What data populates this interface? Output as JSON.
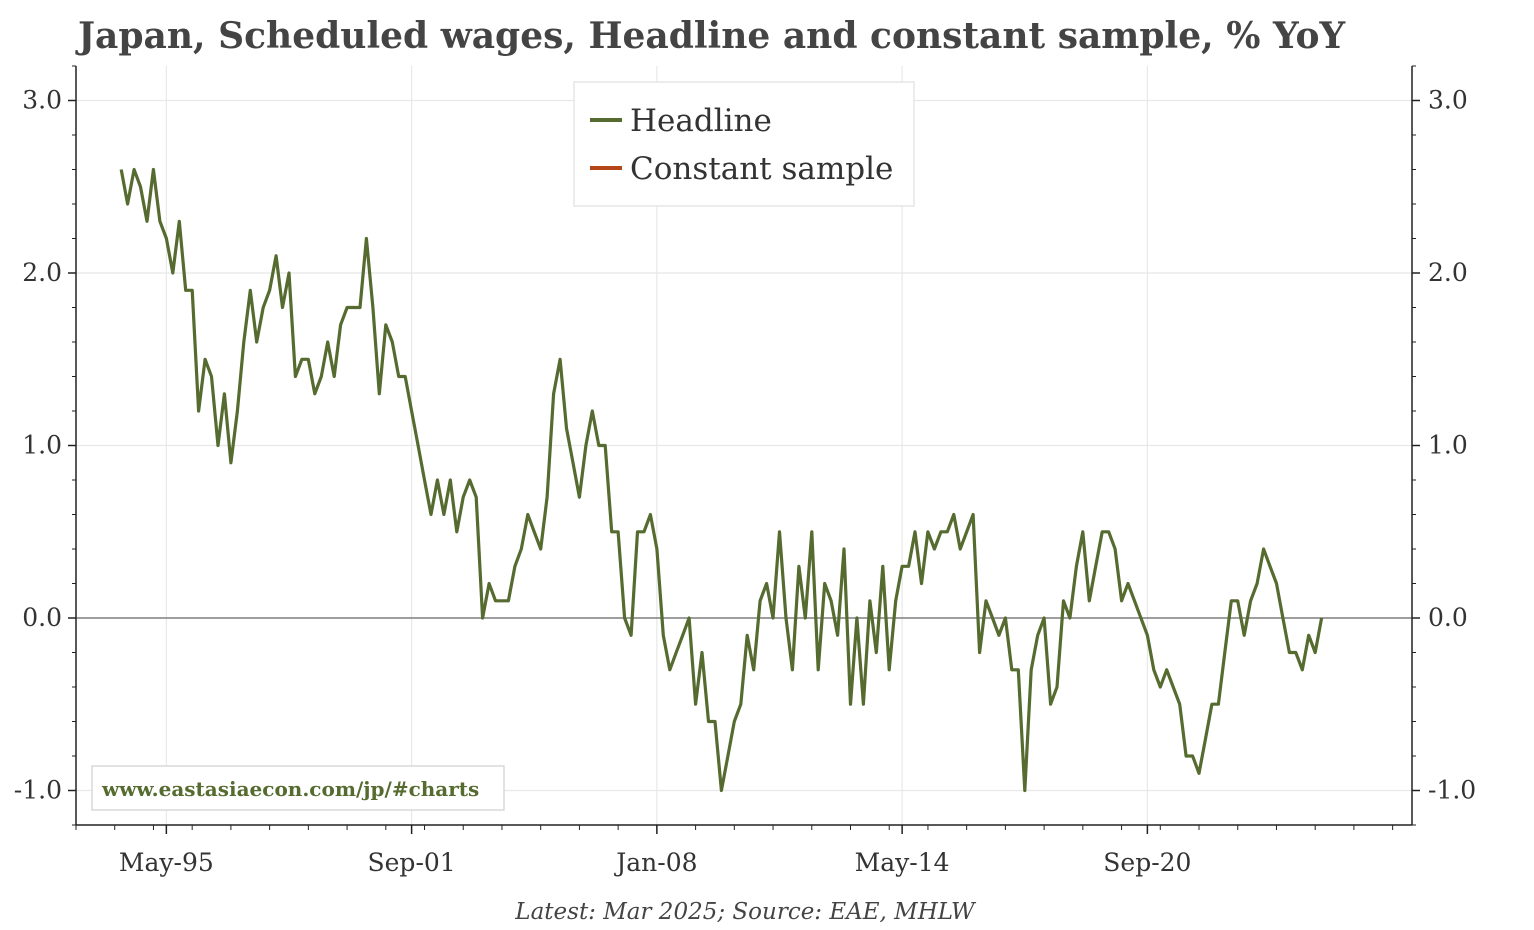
{
  "chart_data": {
    "type": "line",
    "title": "Japan, Scheduled wages, Headline and constant sample, % YoY",
    "x_start": "1994-03",
    "x_end": "2025-03",
    "x_tick_labels": [
      "May-95",
      "Sep-01",
      "Jan-08",
      "May-14",
      "Sep-20"
    ],
    "x_tick_dates": [
      "1995-05",
      "2001-09",
      "2008-01",
      "2014-05",
      "2020-09"
    ],
    "y_tick_labels": [
      "-1.0",
      "0.0",
      "1.0",
      "2.0",
      "3.0"
    ],
    "ylim": [
      -1.2,
      3.2
    ],
    "grid": true,
    "legend_position": "top-center",
    "series": [
      {
        "name": "Headline",
        "color": "#556b2f",
        "points": [
          [
            "1994-03",
            2.6
          ],
          [
            "1994-05",
            2.4
          ],
          [
            "1994-07",
            2.6
          ],
          [
            "1994-09",
            2.5
          ],
          [
            "1994-11",
            2.3
          ],
          [
            "1995-01",
            2.6
          ],
          [
            "1995-03",
            2.3
          ],
          [
            "1995-05",
            2.2
          ],
          [
            "1995-07",
            2.0
          ],
          [
            "1995-09",
            2.3
          ],
          [
            "1995-11",
            1.9
          ],
          [
            "1996-01",
            1.9
          ],
          [
            "1996-03",
            1.2
          ],
          [
            "1996-05",
            1.5
          ],
          [
            "1996-07",
            1.4
          ],
          [
            "1996-09",
            1.0
          ],
          [
            "1996-11",
            1.3
          ],
          [
            "1997-01",
            0.9
          ],
          [
            "1997-03",
            1.2
          ],
          [
            "1997-05",
            1.6
          ],
          [
            "1997-07",
            1.9
          ],
          [
            "1997-09",
            1.6
          ],
          [
            "1997-11",
            1.8
          ],
          [
            "1998-01",
            1.9
          ],
          [
            "1998-03",
            2.1
          ],
          [
            "1998-05",
            1.8
          ],
          [
            "1998-07",
            2.0
          ],
          [
            "1998-09",
            1.4
          ],
          [
            "1998-11",
            1.5
          ],
          [
            "1999-01",
            1.5
          ],
          [
            "1999-03",
            1.3
          ],
          [
            "1999-05",
            1.4
          ],
          [
            "1999-07",
            1.6
          ],
          [
            "1999-09",
            1.4
          ],
          [
            "1999-11",
            1.7
          ],
          [
            "2000-01",
            1.8
          ],
          [
            "2000-03",
            1.8
          ],
          [
            "2000-05",
            1.8
          ],
          [
            "2000-07",
            2.2
          ],
          [
            "2000-09",
            1.8
          ],
          [
            "2000-11",
            1.3
          ],
          [
            "2001-01",
            1.7
          ],
          [
            "2001-03",
            1.6
          ],
          [
            "2001-05",
            1.4
          ],
          [
            "2001-07",
            1.4
          ],
          [
            "2001-09",
            1.2
          ],
          [
            "2001-11",
            1.0
          ],
          [
            "2002-01",
            0.8
          ],
          [
            "2002-03",
            0.6
          ],
          [
            "2002-05",
            0.8
          ],
          [
            "2002-07",
            0.6
          ],
          [
            "2002-09",
            0.8
          ],
          [
            "2002-11",
            0.5
          ],
          [
            "2003-01",
            0.7
          ],
          [
            "2003-03",
            0.8
          ],
          [
            "2003-05",
            0.7
          ],
          [
            "2003-07",
            0.0
          ],
          [
            "2003-09",
            0.2
          ],
          [
            "2003-11",
            0.1
          ],
          [
            "2004-01",
            0.1
          ],
          [
            "2004-03",
            0.1
          ],
          [
            "2004-05",
            0.3
          ],
          [
            "2004-07",
            0.4
          ],
          [
            "2004-09",
            0.6
          ],
          [
            "2004-11",
            0.5
          ],
          [
            "2005-01",
            0.4
          ],
          [
            "2005-03",
            0.7
          ],
          [
            "2005-05",
            1.3
          ],
          [
            "2005-07",
            1.5
          ],
          [
            "2005-09",
            1.1
          ],
          [
            "2005-11",
            0.9
          ],
          [
            "2006-01",
            0.7
          ],
          [
            "2006-03",
            1.0
          ],
          [
            "2006-05",
            1.2
          ],
          [
            "2006-07",
            1.0
          ],
          [
            "2006-09",
            1.0
          ],
          [
            "2006-11",
            0.5
          ],
          [
            "2007-01",
            0.5
          ],
          [
            "2007-03",
            0.0
          ],
          [
            "2007-05",
            -0.1
          ],
          [
            "2007-07",
            0.5
          ],
          [
            "2007-09",
            0.5
          ],
          [
            "2007-11",
            0.6
          ],
          [
            "2008-01",
            0.4
          ],
          [
            "2008-03",
            -0.1
          ],
          [
            "2008-05",
            -0.3
          ],
          [
            "2008-07",
            -0.2
          ],
          [
            "2008-09",
            -0.1
          ],
          [
            "2008-11",
            0.0
          ],
          [
            "2009-01",
            -0.5
          ],
          [
            "2009-03",
            -0.2
          ],
          [
            "2009-05",
            -0.6
          ],
          [
            "2009-07",
            -0.6
          ],
          [
            "2009-09",
            -1.0
          ],
          [
            "2009-11",
            -0.8
          ],
          [
            "2010-01",
            -0.6
          ],
          [
            "2010-03",
            -0.5
          ],
          [
            "2010-05",
            -0.1
          ],
          [
            "2010-07",
            -0.3
          ],
          [
            "2010-09",
            0.1
          ],
          [
            "2010-11",
            0.2
          ],
          [
            "2011-01",
            0.0
          ],
          [
            "2011-03",
            0.5
          ],
          [
            "2011-05",
            0.0
          ],
          [
            "2011-07",
            -0.3
          ],
          [
            "2011-09",
            0.3
          ],
          [
            "2011-11",
            0.0
          ],
          [
            "2012-01",
            0.5
          ],
          [
            "2012-03",
            -0.3
          ],
          [
            "2012-05",
            0.2
          ],
          [
            "2012-07",
            0.1
          ],
          [
            "2012-09",
            -0.1
          ],
          [
            "2012-11",
            0.4
          ],
          [
            "2013-01",
            -0.5
          ],
          [
            "2013-03",
            0.0
          ],
          [
            "2013-05",
            -0.5
          ],
          [
            "2013-07",
            0.1
          ],
          [
            "2013-09",
            -0.2
          ],
          [
            "2013-11",
            0.3
          ],
          [
            "2014-01",
            -0.3
          ],
          [
            "2014-03",
            0.1
          ],
          [
            "2014-05",
            0.3
          ],
          [
            "2014-07",
            0.3
          ],
          [
            "2014-09",
            0.5
          ],
          [
            "2014-11",
            0.2
          ],
          [
            "2015-01",
            0.5
          ],
          [
            "2015-03",
            0.4
          ],
          [
            "2015-05",
            0.5
          ],
          [
            "2015-07",
            0.5
          ],
          [
            "2015-09",
            0.6
          ],
          [
            "2015-11",
            0.4
          ],
          [
            "2016-01",
            0.5
          ],
          [
            "2016-03",
            0.6
          ],
          [
            "2016-05",
            -0.2
          ],
          [
            "2016-07",
            0.1
          ],
          [
            "2016-09",
            0.0
          ],
          [
            "2016-11",
            -0.1
          ],
          [
            "2017-01",
            0.0
          ],
          [
            "2017-03",
            -0.3
          ],
          [
            "2017-05",
            -0.3
          ],
          [
            "2017-07",
            -1.0
          ],
          [
            "2017-09",
            -0.3
          ],
          [
            "2017-11",
            -0.1
          ],
          [
            "2018-01",
            0.0
          ],
          [
            "2018-03",
            -0.5
          ],
          [
            "2018-05",
            -0.4
          ],
          [
            "2018-07",
            0.1
          ],
          [
            "2018-09",
            0.0
          ],
          [
            "2018-11",
            0.3
          ],
          [
            "2019-01",
            0.5
          ],
          [
            "2019-03",
            0.1
          ],
          [
            "2019-05",
            0.3
          ],
          [
            "2019-07",
            0.5
          ],
          [
            "2019-09",
            0.5
          ],
          [
            "2019-11",
            0.4
          ],
          [
            "2020-01",
            0.1
          ],
          [
            "2020-03",
            0.2
          ],
          [
            "2020-05",
            0.1
          ],
          [
            "2020-07",
            0.0
          ],
          [
            "2020-09",
            -0.1
          ],
          [
            "2020-11",
            -0.3
          ],
          [
            "2021-01",
            -0.4
          ],
          [
            "2021-03",
            -0.3
          ],
          [
            "2021-05",
            -0.4
          ],
          [
            "2021-07",
            -0.5
          ],
          [
            "2021-09",
            -0.8
          ],
          [
            "2021-11",
            -0.8
          ],
          [
            "2022-01",
            -0.9
          ],
          [
            "2022-03",
            -0.7
          ],
          [
            "2022-05",
            -0.5
          ],
          [
            "2022-07",
            -0.5
          ],
          [
            "2022-09",
            -0.2
          ],
          [
            "2022-11",
            0.1
          ],
          [
            "2023-01",
            0.1
          ],
          [
            "2023-03",
            -0.1
          ],
          [
            "2023-05",
            0.1
          ],
          [
            "2023-07",
            0.2
          ],
          [
            "2023-09",
            0.4
          ],
          [
            "2023-11",
            0.3
          ],
          [
            "2024-01",
            0.2
          ],
          [
            "2024-03",
            0.0
          ],
          [
            "2024-05",
            -0.2
          ],
          [
            "2024-07",
            -0.2
          ],
          [
            "2024-09",
            -0.3
          ],
          [
            "2024-11",
            -0.1
          ],
          [
            "2025-01",
            -0.2
          ],
          [
            "2025-03",
            0.0
          ]
        ]
      },
      {
        "name": "Constant sample",
        "color": "#b5461a",
        "points": []
      }
    ]
  },
  "watermark": "www.eastasiaecon.com/jp/#charts",
  "source_note": "Latest: Mar 2025; Source: EAE, MHLW"
}
